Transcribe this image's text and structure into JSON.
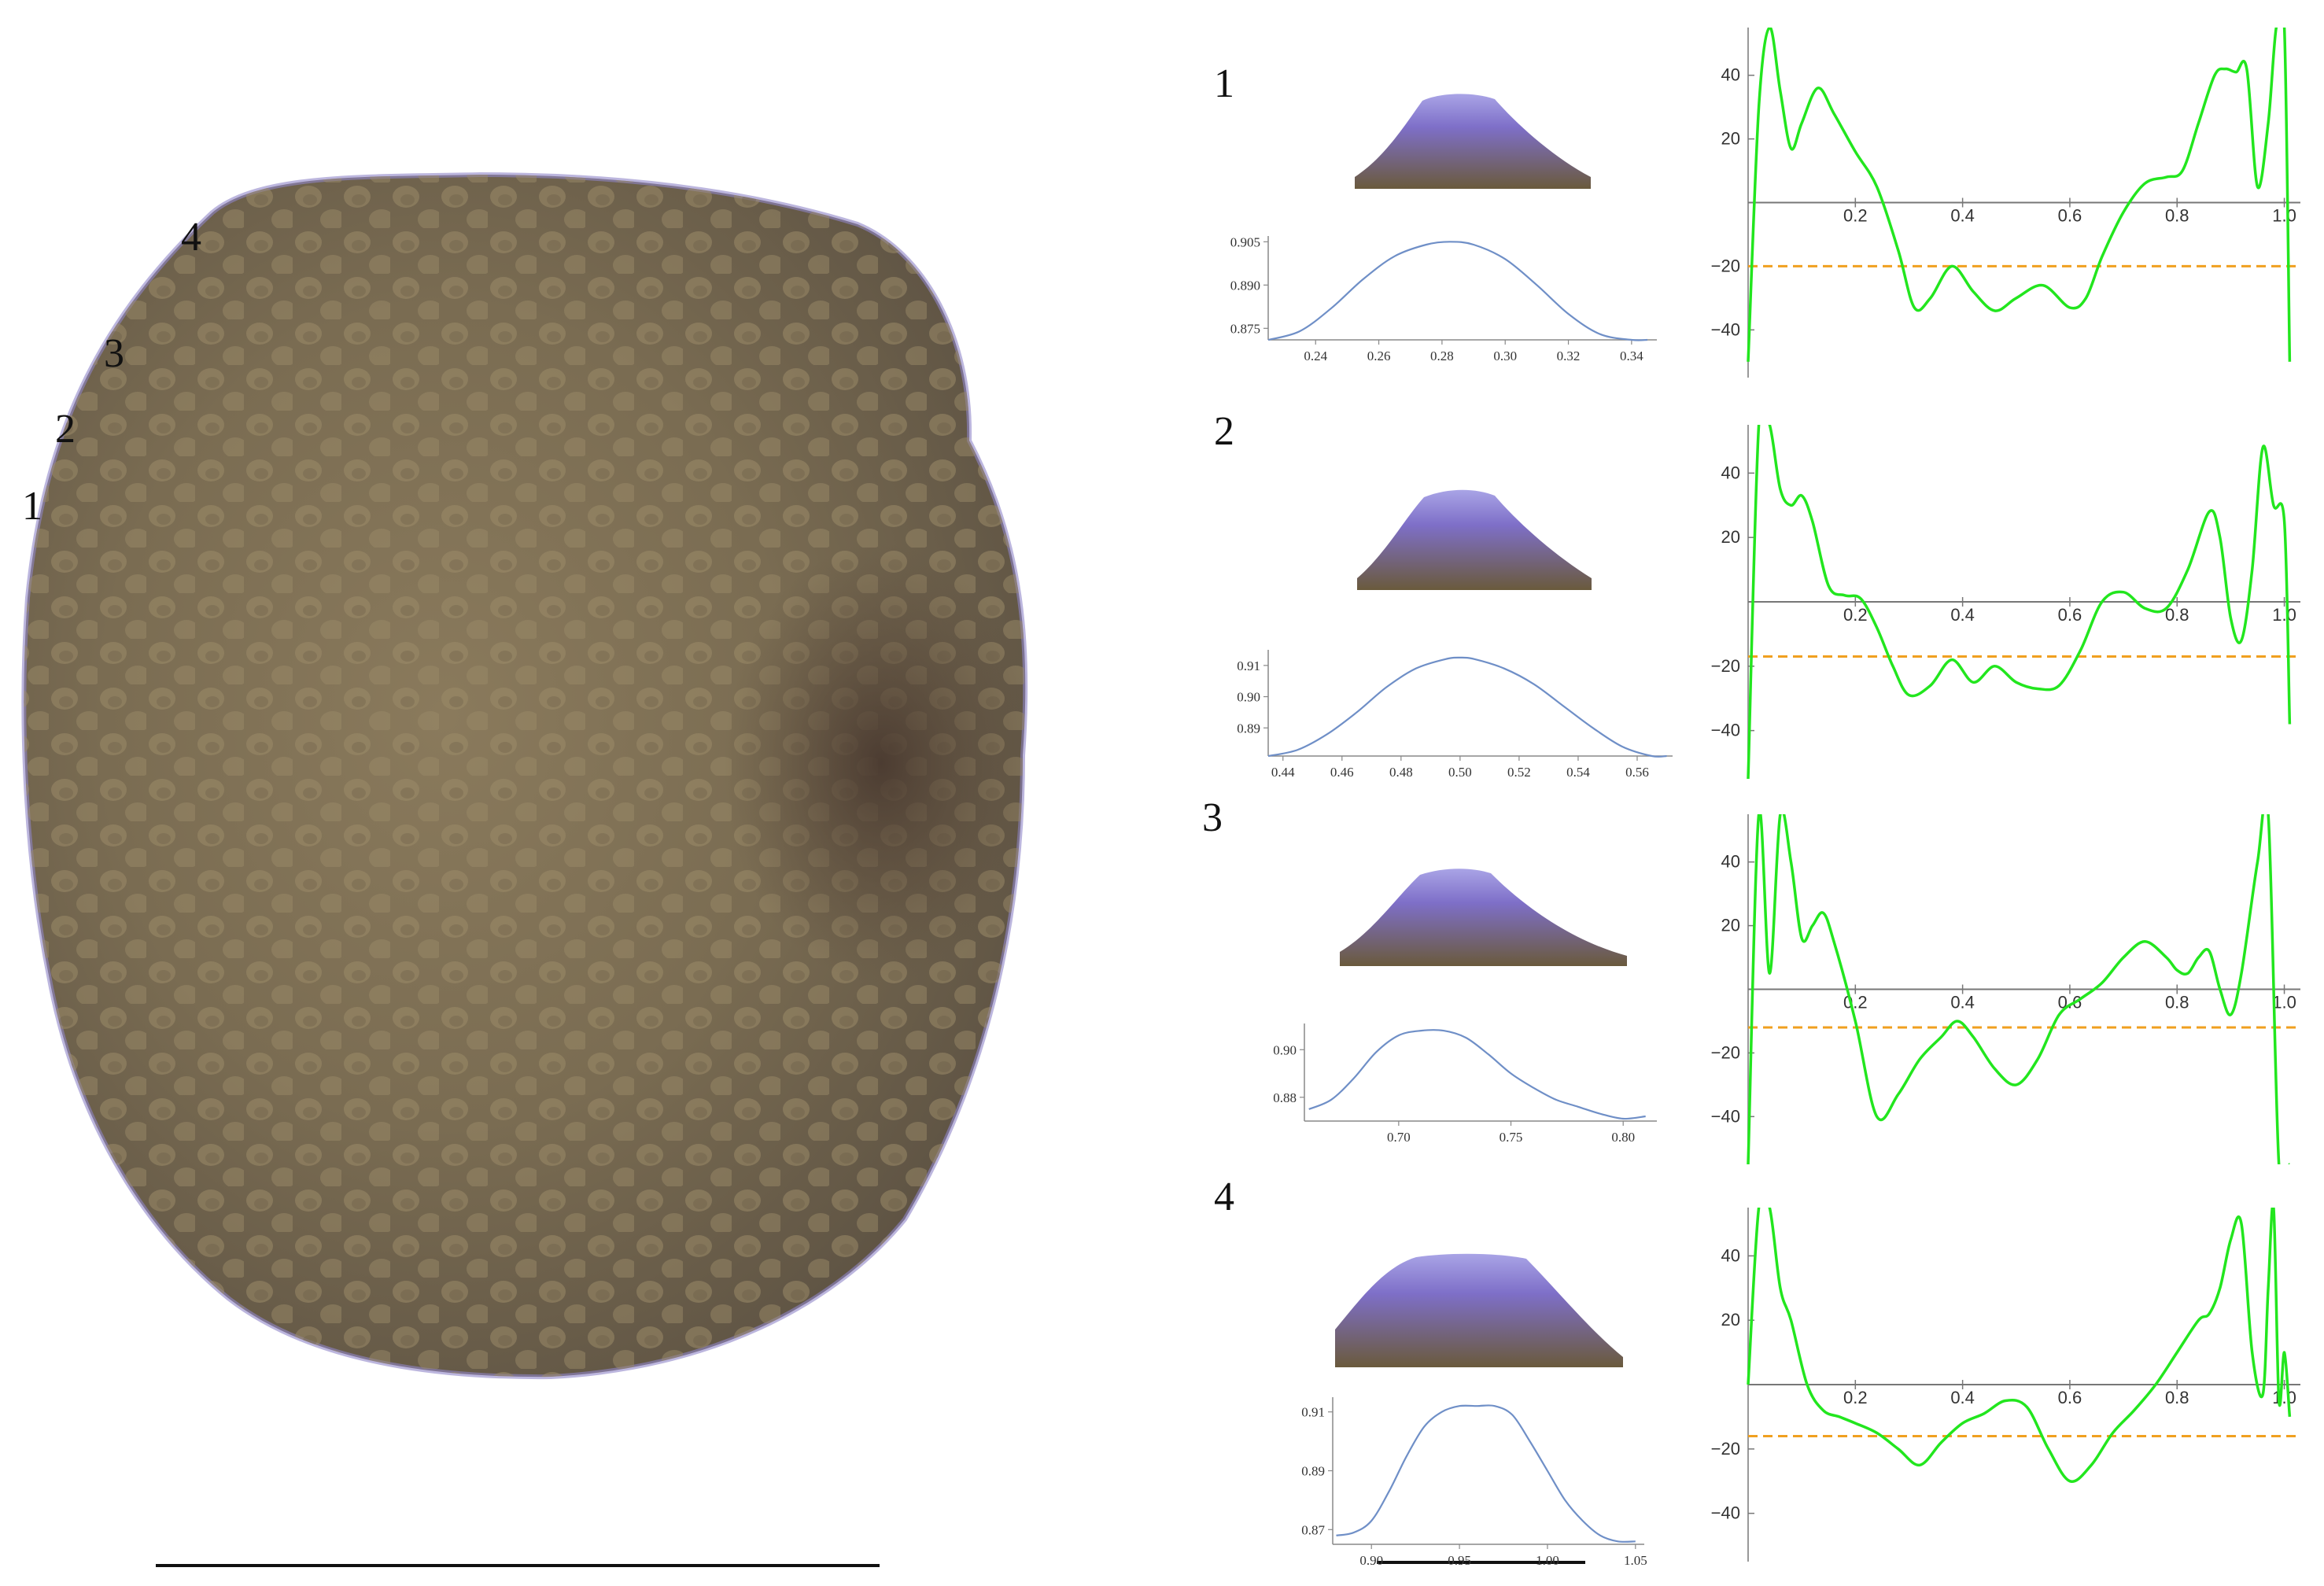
{
  "figure": {
    "point_labels": [
      "1",
      "2",
      "3",
      "4"
    ],
    "row_labels": [
      "1",
      "2",
      "3",
      "4"
    ]
  },
  "chart_data": [
    {
      "panel": "row-1-profile",
      "type": "line",
      "series_color": "#6f8fc7",
      "x": [
        0.225,
        0.235,
        0.245,
        0.255,
        0.265,
        0.275,
        0.2825,
        0.29,
        0.3,
        0.31,
        0.32,
        0.33,
        0.34,
        0.345
      ],
      "y": [
        0.871,
        0.874,
        0.882,
        0.892,
        0.9,
        0.904,
        0.905,
        0.904,
        0.899,
        0.89,
        0.88,
        0.873,
        0.871,
        0.871
      ],
      "x_ticks": [
        0.24,
        0.26,
        0.28,
        0.3,
        0.32,
        0.34
      ],
      "x_tick_labels": [
        "0.24",
        "0.26",
        "0.28",
        "0.30",
        "0.32",
        "0.34"
      ],
      "y_ticks": [
        0.875,
        0.89,
        0.905
      ],
      "y_tick_labels": [
        "0.875",
        "0.890",
        "0.905"
      ],
      "xlim": [
        0.225,
        0.348
      ],
      "ylim": [
        0.871,
        0.907
      ]
    },
    {
      "panel": "row-1-curvature",
      "type": "line",
      "series_color": "#22e61e",
      "threshold_color": "#f0a020",
      "x": [
        0.0,
        0.02,
        0.04,
        0.06,
        0.08,
        0.1,
        0.13,
        0.16,
        0.2,
        0.24,
        0.28,
        0.31,
        0.34,
        0.38,
        0.42,
        0.46,
        0.5,
        0.55,
        0.6,
        0.63,
        0.66,
        0.7,
        0.74,
        0.78,
        0.81,
        0.84,
        0.87,
        0.89,
        0.91,
        0.93,
        0.95,
        0.97,
        0.985,
        1.0,
        1.01
      ],
      "y": [
        -50,
        30,
        55,
        35,
        17,
        25,
        36,
        28,
        16,
        5,
        -15,
        -33,
        -30,
        -20,
        -28,
        -34,
        -30,
        -26,
        -33,
        -30,
        -17,
        -3,
        6,
        8,
        10,
        25,
        40,
        42,
        41,
        42,
        5,
        25,
        55,
        55,
        -50
      ],
      "threshold": -20,
      "x_ticks": [
        0.2,
        0.4,
        0.6,
        0.8,
        1.0
      ],
      "x_tick_labels": [
        "0.2",
        "0.4",
        "0.6",
        "0.8",
        "1.0"
      ],
      "y_ticks": [
        40,
        20,
        -20,
        -40
      ],
      "y_tick_labels": [
        "40",
        "20",
        "−20",
        "−40"
      ],
      "xlim": [
        0.0,
        1.03
      ],
      "ylim": [
        -55,
        55
      ]
    },
    {
      "panel": "row-2-profile",
      "type": "line",
      "series_color": "#6f8fc7",
      "x": [
        0.435,
        0.445,
        0.455,
        0.465,
        0.475,
        0.485,
        0.495,
        0.5,
        0.505,
        0.515,
        0.525,
        0.535,
        0.545,
        0.555,
        0.565,
        0.57
      ],
      "y": [
        0.881,
        0.883,
        0.888,
        0.895,
        0.903,
        0.909,
        0.912,
        0.9125,
        0.912,
        0.909,
        0.904,
        0.897,
        0.89,
        0.884,
        0.881,
        0.881
      ],
      "x_ticks": [
        0.44,
        0.46,
        0.48,
        0.5,
        0.52,
        0.54,
        0.56
      ],
      "x_tick_labels": [
        "0.44",
        "0.46",
        "0.48",
        "0.50",
        "0.52",
        "0.54",
        "0.56"
      ],
      "y_ticks": [
        0.89,
        0.9,
        0.91
      ],
      "y_tick_labels": [
        "0.89",
        "0.90",
        "0.91"
      ],
      "xlim": [
        0.435,
        0.572
      ],
      "ylim": [
        0.881,
        0.915
      ]
    },
    {
      "panel": "row-2-curvature",
      "type": "line",
      "series_color": "#22e61e",
      "threshold_color": "#f0a020",
      "x": [
        0.0,
        0.02,
        0.04,
        0.06,
        0.08,
        0.1,
        0.12,
        0.15,
        0.18,
        0.21,
        0.24,
        0.27,
        0.3,
        0.34,
        0.38,
        0.42,
        0.46,
        0.5,
        0.54,
        0.58,
        0.62,
        0.66,
        0.7,
        0.74,
        0.78,
        0.82,
        0.86,
        0.88,
        0.9,
        0.92,
        0.94,
        0.96,
        0.98,
        1.0,
        1.01
      ],
      "y": [
        -55,
        55,
        55,
        35,
        30,
        33,
        25,
        5,
        2,
        1,
        -8,
        -20,
        -29,
        -26,
        -18,
        -25,
        -20,
        -25,
        -27,
        -26,
        -15,
        0,
        3,
        -2,
        -2,
        10,
        28,
        20,
        -5,
        -12,
        10,
        48,
        30,
        25,
        -38
      ],
      "threshold": -17,
      "x_ticks": [
        0.2,
        0.4,
        0.6,
        0.8,
        1.0
      ],
      "x_tick_labels": [
        "0.2",
        "0.4",
        "0.6",
        "0.8",
        "1.0"
      ],
      "y_ticks": [
        40,
        20,
        -20,
        -40
      ],
      "y_tick_labels": [
        "40",
        "20",
        "−20",
        "−40"
      ],
      "xlim": [
        0.0,
        1.03
      ],
      "ylim": [
        -55,
        55
      ]
    },
    {
      "panel": "row-3-profile",
      "type": "line",
      "series_color": "#6f8fc7",
      "x": [
        0.66,
        0.67,
        0.68,
        0.69,
        0.7,
        0.71,
        0.72,
        0.73,
        0.74,
        0.75,
        0.76,
        0.77,
        0.78,
        0.79,
        0.8,
        0.81
      ],
      "y": [
        0.875,
        0.879,
        0.888,
        0.899,
        0.906,
        0.908,
        0.908,
        0.905,
        0.898,
        0.89,
        0.884,
        0.879,
        0.876,
        0.873,
        0.871,
        0.872
      ],
      "x_ticks": [
        0.7,
        0.75,
        0.8
      ],
      "x_tick_labels": [
        "0.70",
        "0.75",
        "0.80"
      ],
      "y_ticks": [
        0.88,
        0.9
      ],
      "y_tick_labels": [
        "0.88",
        "0.90"
      ],
      "xlim": [
        0.658,
        0.815
      ],
      "ylim": [
        0.87,
        0.911
      ]
    },
    {
      "panel": "row-3-curvature",
      "type": "line",
      "series_color": "#22e61e",
      "threshold_color": "#f0a020",
      "x": [
        0.0,
        0.02,
        0.04,
        0.06,
        0.08,
        0.1,
        0.12,
        0.14,
        0.16,
        0.2,
        0.24,
        0.28,
        0.32,
        0.36,
        0.39,
        0.42,
        0.46,
        0.5,
        0.54,
        0.58,
        0.62,
        0.66,
        0.7,
        0.74,
        0.78,
        0.8,
        0.82,
        0.84,
        0.86,
        0.88,
        0.9,
        0.92,
        0.95,
        0.97,
        0.99,
        1.01
      ],
      "y": [
        -55,
        55,
        5,
        55,
        40,
        16,
        20,
        24,
        15,
        -10,
        -40,
        -33,
        -22,
        -15,
        -10,
        -15,
        -25,
        -30,
        -22,
        -8,
        -3,
        2,
        10,
        15,
        10,
        6,
        5,
        10,
        12,
        0,
        -8,
        5,
        40,
        55,
        -55,
        -55
      ],
      "threshold": -12,
      "x_ticks": [
        0.2,
        0.4,
        0.6,
        0.8,
        1.0
      ],
      "x_tick_labels": [
        "0.2",
        "0.4",
        "0.6",
        "0.8",
        "1.0"
      ],
      "y_ticks": [
        40,
        20,
        -20,
        -40
      ],
      "y_tick_labels": [
        "40",
        "20",
        "−20",
        "−40"
      ],
      "xlim": [
        0.0,
        1.03
      ],
      "ylim": [
        -55,
        55
      ]
    },
    {
      "panel": "row-4-profile",
      "type": "line",
      "series_color": "#6f8fc7",
      "x": [
        0.88,
        0.89,
        0.9,
        0.91,
        0.92,
        0.93,
        0.94,
        0.95,
        0.96,
        0.97,
        0.98,
        0.99,
        1.0,
        1.01,
        1.02,
        1.03,
        1.04,
        1.05
      ],
      "y": [
        0.868,
        0.869,
        0.873,
        0.883,
        0.895,
        0.905,
        0.91,
        0.912,
        0.912,
        0.912,
        0.909,
        0.9,
        0.89,
        0.88,
        0.873,
        0.868,
        0.866,
        0.866
      ],
      "x_ticks": [
        0.9,
        0.95,
        1.0,
        1.05
      ],
      "x_tick_labels": [
        "0.90",
        "0.95",
        "1.00",
        "1.05"
      ],
      "y_ticks": [
        0.87,
        0.89,
        0.91
      ],
      "y_tick_labels": [
        "0.87",
        "0.89",
        "0.91"
      ],
      "xlim": [
        0.878,
        1.055
      ],
      "ylim": [
        0.865,
        0.915
      ]
    },
    {
      "panel": "row-4-curvature",
      "type": "line",
      "series_color": "#22e61e",
      "threshold_color": "#f0a020",
      "x": [
        0.0,
        0.02,
        0.04,
        0.06,
        0.08,
        0.11,
        0.14,
        0.17,
        0.2,
        0.24,
        0.28,
        0.32,
        0.36,
        0.4,
        0.44,
        0.48,
        0.52,
        0.56,
        0.6,
        0.64,
        0.68,
        0.72,
        0.76,
        0.8,
        0.84,
        0.86,
        0.88,
        0.9,
        0.92,
        0.94,
        0.96,
        0.97,
        0.98,
        0.99,
        1.0,
        1.01
      ],
      "y": [
        0.0,
        55,
        55,
        30,
        20,
        0,
        -8,
        -10,
        -12,
        -15,
        -20,
        -25,
        -18,
        -12,
        -9,
        -5,
        -7,
        -20,
        -30,
        -25,
        -15,
        -8,
        0,
        10,
        20,
        22,
        30,
        45,
        50,
        10,
        -3,
        30,
        55,
        -5,
        10,
        -10
      ],
      "threshold": -16,
      "x_ticks": [
        0.2,
        0.4,
        0.6,
        0.8,
        1.0
      ],
      "x_tick_labels": [
        "0.2",
        "0.4",
        "0.6",
        "0.8",
        "1.0"
      ],
      "y_ticks": [
        40,
        20,
        -20,
        -40
      ],
      "y_tick_labels": [
        "40",
        "20",
        "−20",
        "−40"
      ],
      "xlim": [
        0.0,
        1.03
      ],
      "ylim": [
        -55,
        55
      ]
    }
  ]
}
